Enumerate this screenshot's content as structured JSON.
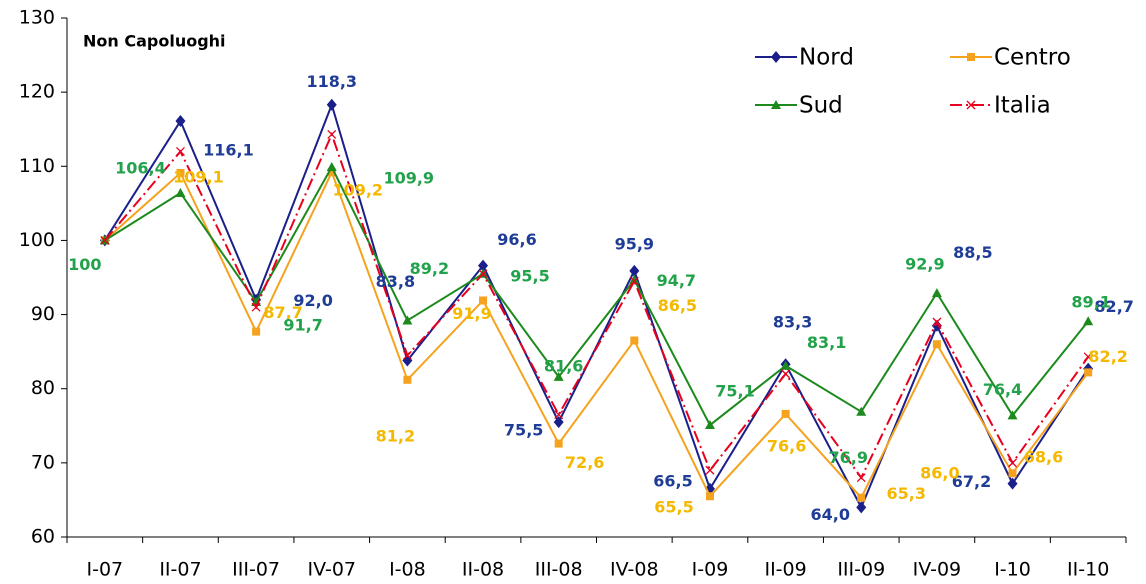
{
  "chart_data": {
    "type": "line",
    "annotation": "Non Capoluoghi",
    "categories": [
      "I-07",
      "II-07",
      "III-07",
      "IV-07",
      "I-08",
      "II-08",
      "III-08",
      "IV-08",
      "I-09",
      "II-09",
      "III-09",
      "IV-09",
      "I-10",
      "II-10"
    ],
    "series": [
      {
        "name": "Nord",
        "color": "#1a1f8a",
        "label_color": "#1f3c96",
        "marker": "diamond",
        "linestyle": "solid",
        "values": [
          100,
          116.1,
          92.0,
          118.3,
          83.8,
          96.6,
          75.5,
          95.9,
          66.5,
          83.3,
          64.0,
          88.5,
          67.2,
          82.7
        ],
        "value_labels": [
          null,
          "116,1",
          "92,0",
          "118,3",
          "83,8",
          "96,6",
          "75,5",
          "95,9",
          "66,5",
          "83,3",
          "64,0",
          "88,5",
          "67,2",
          "82,7"
        ]
      },
      {
        "name": "Centro",
        "color": "#f5a31e",
        "label_color": "#f5b800",
        "marker": "square",
        "linestyle": "solid",
        "values": [
          100,
          109.1,
          87.7,
          109.2,
          81.2,
          91.9,
          72.6,
          86.5,
          65.5,
          76.6,
          65.3,
          86.0,
          68.6,
          82.2
        ],
        "value_labels": [
          null,
          "109,1",
          "87,7",
          "109,2",
          "81,2",
          "91,9",
          "72,6",
          "86,5",
          "65,5",
          "76,6",
          "65,3",
          "86,0",
          "68,6",
          "82,2"
        ]
      },
      {
        "name": "Sud",
        "color": "#1c8a1c",
        "label_color": "#22a24a",
        "marker": "triangle",
        "linestyle": "solid",
        "values": [
          100,
          106.4,
          91.7,
          109.9,
          89.2,
          95.5,
          81.6,
          94.7,
          75.1,
          83.1,
          76.9,
          92.9,
          76.4,
          89.1
        ],
        "value_labels": [
          "100",
          "106,4",
          "91,7",
          "109,9",
          "89,2",
          "95,5",
          "81,6",
          "94,7",
          "75,1",
          "83,1",
          "76,9",
          "92,9",
          "76,4",
          "89,1"
        ]
      },
      {
        "name": "Italia",
        "color": "#e8001c",
        "marker": "x",
        "linestyle": "dashdot",
        "values": [
          100,
          112,
          91,
          114.3,
          84.5,
          95.5,
          76.5,
          94.5,
          69,
          82,
          68,
          89,
          70,
          84.3
        ]
      }
    ],
    "ylim": [
      60,
      130
    ],
    "yticks": [
      60,
      70,
      80,
      90,
      100,
      110,
      120,
      130
    ],
    "legend": "top-right",
    "grid": false
  }
}
